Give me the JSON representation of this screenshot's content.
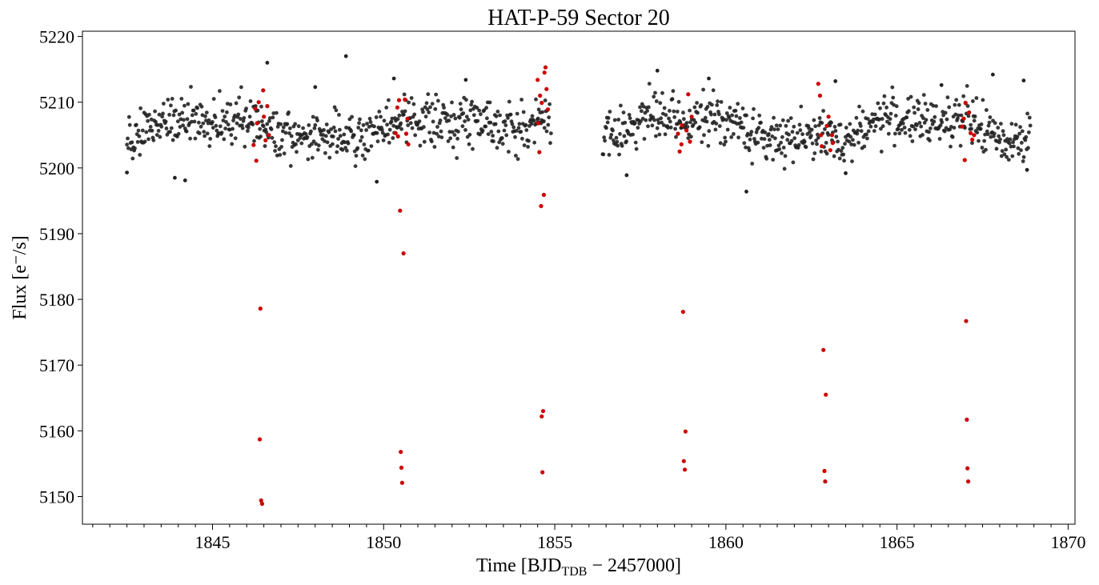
{
  "chart_data": {
    "type": "scatter",
    "title": "HAT-P-59 Sector 20",
    "xlabel": {
      "main": "Time [BJD",
      "sub": "TDB",
      "suffix": " − 2457000]"
    },
    "ylabel": "Flux [e⁻/s]",
    "xlim": [
      1841.2,
      1870.2
    ],
    "ylim": [
      5145.8,
      5220.8
    ],
    "xticks": [
      1845,
      1850,
      1855,
      1860,
      1865,
      1870
    ],
    "xtick_labels": [
      "1845",
      "1850",
      "1855",
      "1860",
      "1865",
      "1870"
    ],
    "yticks": [
      5150,
      5160,
      5170,
      5180,
      5190,
      5200,
      5210,
      5220
    ],
    "ytick_labels": [
      "5150",
      "5160",
      "5170",
      "5180",
      "5190",
      "5200",
      "5210",
      "5220"
    ],
    "x_minor_step": 0.5,
    "grid": false,
    "series": [
      {
        "color": "#222222",
        "description": "out-of-transit points (dense band around 5200–5212)",
        "band": {
          "segments": [
            [
              1842.5,
              1854.9
            ],
            [
              1856.4,
              1868.9
            ]
          ],
          "center": 5206.0,
          "spread": 3.0,
          "rise_near_gap": {
            "start": 1853.5,
            "end": 1854.9,
            "amount": 3.5
          },
          "cadence_days": 0.021
        },
        "outliers": [
          {
            "x": 1842.5,
            "y": 5199.3
          },
          {
            "x": 1843.9,
            "y": 5198.5
          },
          {
            "x": 1844.2,
            "y": 5198.1
          },
          {
            "x": 1846.6,
            "y": 5216.0
          },
          {
            "x": 1848.0,
            "y": 5212.3
          },
          {
            "x": 1848.9,
            "y": 5217.0
          },
          {
            "x": 1849.8,
            "y": 5197.9
          },
          {
            "x": 1850.3,
            "y": 5213.6
          },
          {
            "x": 1852.4,
            "y": 5213.4
          },
          {
            "x": 1857.1,
            "y": 5198.9
          },
          {
            "x": 1858.0,
            "y": 5214.8
          },
          {
            "x": 1859.5,
            "y": 5213.6
          },
          {
            "x": 1860.6,
            "y": 5196.4
          },
          {
            "x": 1863.2,
            "y": 5213.2
          },
          {
            "x": 1863.5,
            "y": 5199.2
          },
          {
            "x": 1866.3,
            "y": 5212.6
          },
          {
            "x": 1867.8,
            "y": 5214.2
          },
          {
            "x": 1868.7,
            "y": 5213.3
          },
          {
            "x": 1868.8,
            "y": 5199.7
          }
        ]
      },
      {
        "color": "#cc0000",
        "description": "in-transit points",
        "points": [
          {
            "x": 1846.2,
            "y": 5203.5
          },
          {
            "x": 1846.25,
            "y": 5209.0
          },
          {
            "x": 1846.28,
            "y": 5201.1
          },
          {
            "x": 1846.3,
            "y": 5206.8
          },
          {
            "x": 1846.35,
            "y": 5210.0
          },
          {
            "x": 1846.4,
            "y": 5178.6
          },
          {
            "x": 1846.38,
            "y": 5158.7
          },
          {
            "x": 1846.42,
            "y": 5149.4
          },
          {
            "x": 1846.45,
            "y": 5148.9
          },
          {
            "x": 1846.48,
            "y": 5211.8
          },
          {
            "x": 1846.5,
            "y": 5207.8
          },
          {
            "x": 1846.55,
            "y": 5204.2
          },
          {
            "x": 1846.6,
            "y": 5209.4
          },
          {
            "x": 1846.65,
            "y": 5205.0
          },
          {
            "x": 1850.35,
            "y": 5205.3
          },
          {
            "x": 1850.4,
            "y": 5209.2
          },
          {
            "x": 1850.42,
            "y": 5204.8
          },
          {
            "x": 1850.45,
            "y": 5210.3
          },
          {
            "x": 1850.48,
            "y": 5193.5
          },
          {
            "x": 1850.5,
            "y": 5156.8
          },
          {
            "x": 1850.52,
            "y": 5154.4
          },
          {
            "x": 1850.54,
            "y": 5152.1
          },
          {
            "x": 1850.58,
            "y": 5187.0
          },
          {
            "x": 1850.62,
            "y": 5210.4
          },
          {
            "x": 1850.66,
            "y": 5205.2
          },
          {
            "x": 1850.7,
            "y": 5207.5
          },
          {
            "x": 1850.72,
            "y": 5203.6
          },
          {
            "x": 1854.5,
            "y": 5213.4
          },
          {
            "x": 1854.52,
            "y": 5206.8
          },
          {
            "x": 1854.55,
            "y": 5202.4
          },
          {
            "x": 1854.57,
            "y": 5211.0
          },
          {
            "x": 1854.6,
            "y": 5194.2
          },
          {
            "x": 1854.62,
            "y": 5162.2
          },
          {
            "x": 1854.64,
            "y": 5153.7
          },
          {
            "x": 1854.66,
            "y": 5163.0
          },
          {
            "x": 1854.68,
            "y": 5195.9
          },
          {
            "x": 1854.7,
            "y": 5214.5
          },
          {
            "x": 1854.73,
            "y": 5215.3
          },
          {
            "x": 1854.76,
            "y": 5212.0
          },
          {
            "x": 1854.8,
            "y": 5208.9
          },
          {
            "x": 1854.62,
            "y": 5209.9
          },
          {
            "x": 1858.6,
            "y": 5205.2
          },
          {
            "x": 1858.65,
            "y": 5202.5
          },
          {
            "x": 1858.7,
            "y": 5203.6
          },
          {
            "x": 1858.72,
            "y": 5206.5
          },
          {
            "x": 1858.75,
            "y": 5178.1
          },
          {
            "x": 1858.77,
            "y": 5155.4
          },
          {
            "x": 1858.8,
            "y": 5154.1
          },
          {
            "x": 1858.82,
            "y": 5159.9
          },
          {
            "x": 1858.85,
            "y": 5205.7
          },
          {
            "x": 1858.9,
            "y": 5211.2
          },
          {
            "x": 1858.95,
            "y": 5204.0
          },
          {
            "x": 1859.0,
            "y": 5207.8
          },
          {
            "x": 1862.7,
            "y": 5212.8
          },
          {
            "x": 1862.75,
            "y": 5211.0
          },
          {
            "x": 1862.78,
            "y": 5205.0
          },
          {
            "x": 1862.8,
            "y": 5203.3
          },
          {
            "x": 1862.85,
            "y": 5172.3
          },
          {
            "x": 1862.88,
            "y": 5153.9
          },
          {
            "x": 1862.9,
            "y": 5152.3
          },
          {
            "x": 1862.92,
            "y": 5165.5
          },
          {
            "x": 1862.95,
            "y": 5206.4
          },
          {
            "x": 1863.0,
            "y": 5207.8
          },
          {
            "x": 1863.05,
            "y": 5202.7
          },
          {
            "x": 1863.1,
            "y": 5205.0
          },
          {
            "x": 1863.12,
            "y": 5203.8
          },
          {
            "x": 1866.9,
            "y": 5206.3
          },
          {
            "x": 1866.95,
            "y": 5207.5
          },
          {
            "x": 1866.98,
            "y": 5201.2
          },
          {
            "x": 1867.0,
            "y": 5209.9
          },
          {
            "x": 1867.02,
            "y": 5176.7
          },
          {
            "x": 1867.04,
            "y": 5161.7
          },
          {
            "x": 1867.06,
            "y": 5154.3
          },
          {
            "x": 1867.08,
            "y": 5152.3
          },
          {
            "x": 1867.1,
            "y": 5208.4
          },
          {
            "x": 1867.15,
            "y": 5205.3
          },
          {
            "x": 1867.2,
            "y": 5204.3
          },
          {
            "x": 1867.25,
            "y": 5205.0
          }
        ]
      }
    ]
  }
}
